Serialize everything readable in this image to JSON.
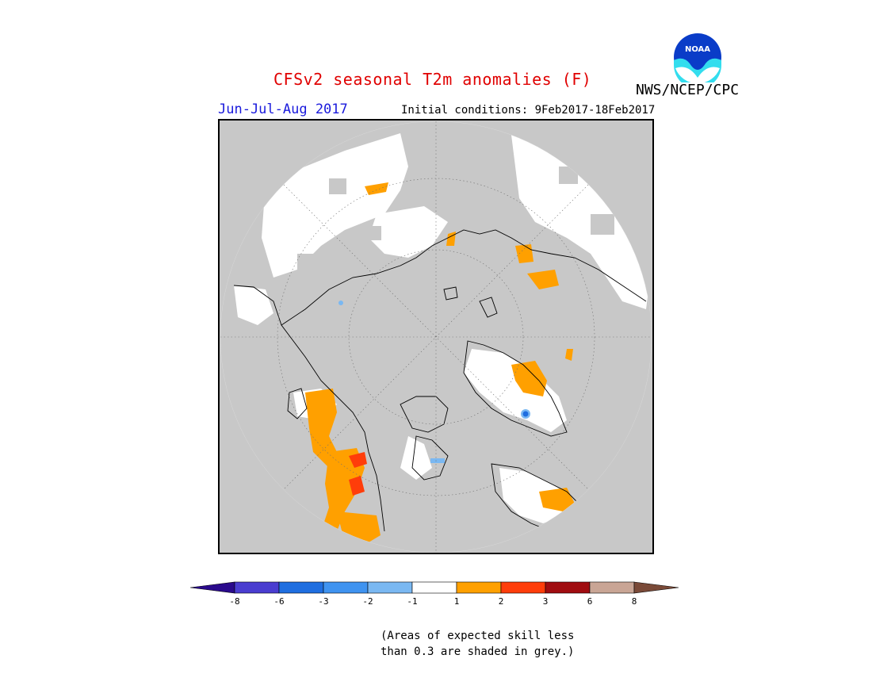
{
  "header": {
    "title": "CFSv2 seasonal T2m anomalies (F)",
    "season": "Jun-Jul-Aug 2017",
    "initial_conditions": "Initial conditions: 9Feb2017-18Feb2017",
    "agency": "NWS/NCEP/CPC",
    "logo_text": "NOAA"
  },
  "legend": {
    "labels": [
      "-8",
      "-6",
      "-3",
      "-2",
      "-1",
      "1",
      "2",
      "3",
      "6",
      "8"
    ],
    "colors": [
      "#2a0a8c",
      "#4a3dd0",
      "#1f6ee0",
      "#3f93f0",
      "#7ab8f2",
      "#ffffff",
      "#ffa000",
      "#ff3d0a",
      "#a00c10",
      "#c9a595",
      "#7a4a38"
    ]
  },
  "footnote": {
    "line1": "(Areas of expected skill less",
    "line2": "than 0.3 are shaded in grey.)"
  },
  "map": {
    "background_color": "#c8c8c8",
    "projection": "north-polar-stereographic"
  }
}
